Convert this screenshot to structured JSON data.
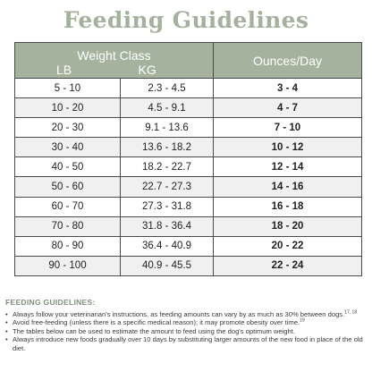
{
  "title": "Feeding Guidelines",
  "table": {
    "weight_class_label": "Weight Class",
    "lb_label": "LB",
    "kg_label": "KG",
    "ounces_label": "Ounces/Day",
    "rows": [
      {
        "lb": "5 - 10",
        "kg": "2.3 - 4.5",
        "oz": "3 - 4"
      },
      {
        "lb": "10 - 20",
        "kg": "4.5 - 9.1",
        "oz": "4 - 7"
      },
      {
        "lb": "20 - 30",
        "kg": "9.1 - 13.6",
        "oz": "7 - 10"
      },
      {
        "lb": "30 - 40",
        "kg": "13.6 - 18.2",
        "oz": "10 - 12"
      },
      {
        "lb": "40 - 50",
        "kg": "18.2 - 22.7",
        "oz": "12 - 14"
      },
      {
        "lb": "50 - 60",
        "kg": "22.7 - 27.3",
        "oz": "14 - 16"
      },
      {
        "lb": "60 - 70",
        "kg": "27.3 - 31.8",
        "oz": "16 - 18"
      },
      {
        "lb": "70 - 80",
        "kg": "31.8 - 36.4",
        "oz": "18 - 20"
      },
      {
        "lb": "80 - 90",
        "kg": "36.4 - 40.9",
        "oz": "20 - 22"
      },
      {
        "lb": "90 - 100",
        "kg": "40.9 - 45.5",
        "oz": "22 - 24"
      }
    ]
  },
  "notes": {
    "title": "FEEDING GUIDELINES:",
    "items": [
      {
        "text": "Always follow your veterinarian's instructions, as feeding amounts can vary by as much as 30% between dogs.",
        "sup": "17, 18"
      },
      {
        "text": "Avoid free-feeding (unless there is a specific medical reason); it may promote obesity over time.",
        "sup": "19"
      },
      {
        "text": "The tables below can be used to estimate the amount to feed using the dog's optimum weight.",
        "sup": ""
      },
      {
        "text": "Always introduce new foods gradually over 10 days by substituting larger amounts of the new food in place of the old diet.",
        "sup": ""
      }
    ]
  },
  "colors": {
    "header_bg": "#a5b39e",
    "title": "#a4b19c",
    "alt_row": "#f0f0f0"
  }
}
